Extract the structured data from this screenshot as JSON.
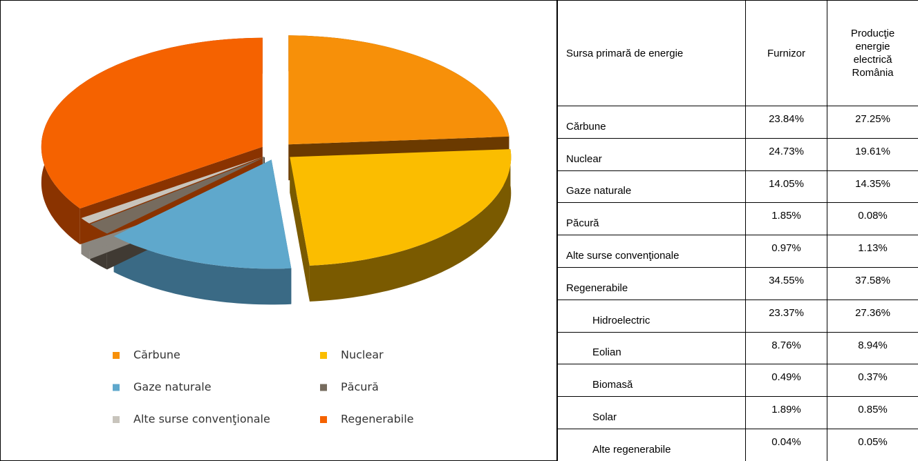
{
  "chart_data": {
    "type": "pie",
    "categories": [
      "Cărbune",
      "Nuclear",
      "Gaze naturale",
      "Păcură",
      "Alte surse convenţionale",
      "Regenerabile"
    ],
    "values": [
      23.84,
      24.73,
      14.05,
      1.85,
      0.97,
      34.55
    ],
    "colors": [
      "#f79009",
      "#fbbd00",
      "#5fa8cc",
      "#766b5e",
      "#c8c4bc",
      "#f56200"
    ],
    "side_colors": [
      "#6b3a00",
      "#7a5a00",
      "#3a6a85",
      "#403a33",
      "#8a867f",
      "#8a3300"
    ],
    "legend": "bottom",
    "exploded": true,
    "three_d": true
  },
  "table": {
    "header": [
      "Sursa primară de energie",
      "Furnizor",
      "Producţie energie electrică România"
    ],
    "rows": [
      [
        "Cărbune",
        "23.84%",
        "27.25%"
      ],
      [
        "Nuclear",
        "24.73%",
        "19.61%"
      ],
      [
        "Gaze naturale",
        "14.05%",
        "14.35%"
      ],
      [
        "Păcură",
        "1.85%",
        "0.08%"
      ],
      [
        "Alte surse convenţionale",
        "0.97%",
        "1.13%"
      ],
      [
        "Regenerabile",
        "34.55%",
        "37.58%"
      ],
      [
        "Hidroelectric",
        "23.37%",
        "27.36%"
      ],
      [
        "Eolian",
        "8.76%",
        "8.94%"
      ],
      [
        "Biomasă",
        "0.49%",
        "0.37%"
      ],
      [
        "Solar",
        "1.89%",
        "0.85%"
      ],
      [
        "Alte regenerabile",
        "0.04%",
        "0.05%"
      ]
    ]
  }
}
